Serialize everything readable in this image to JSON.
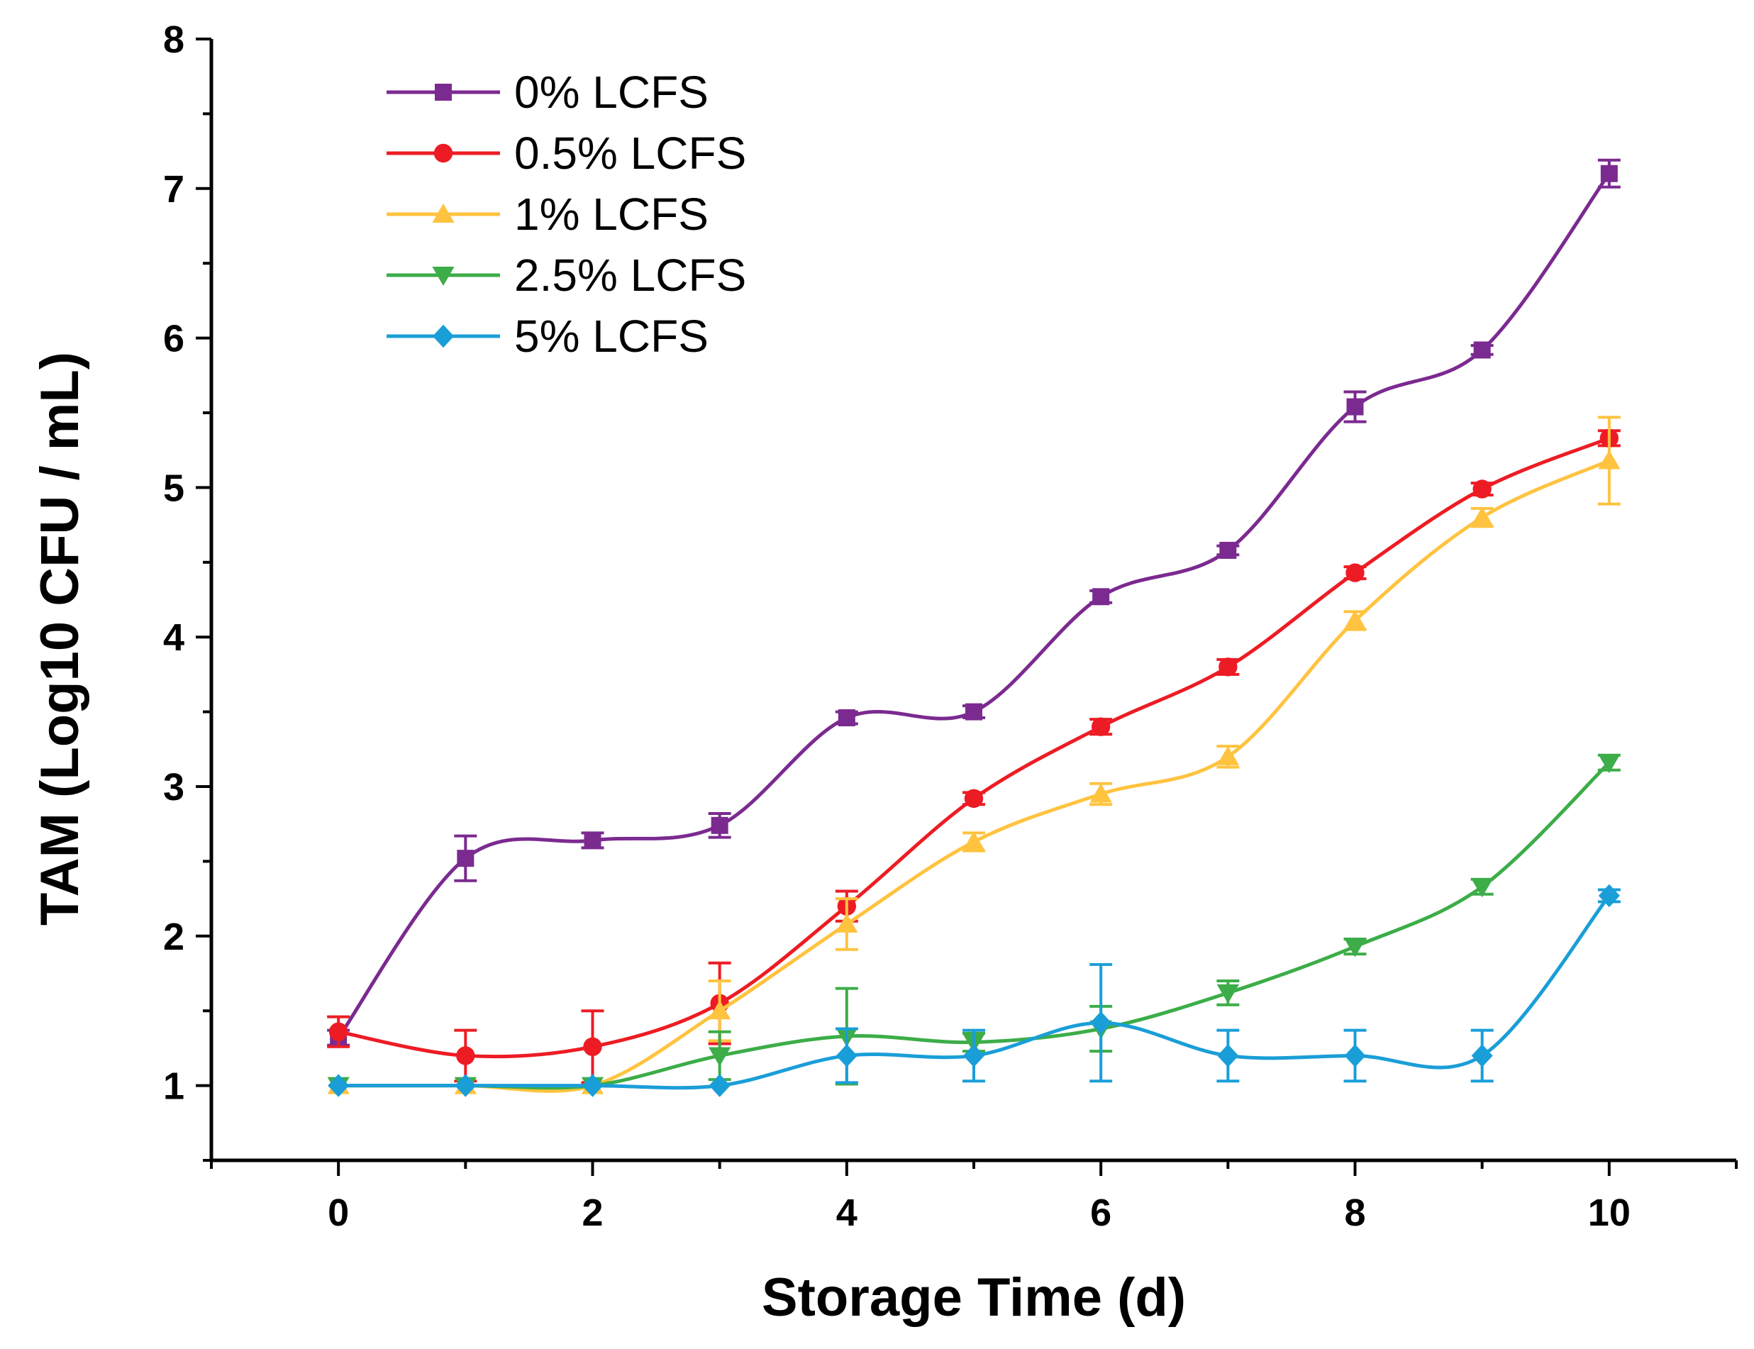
{
  "chart_data": {
    "type": "line",
    "title": "",
    "xlabel": "Storage Time (d)",
    "ylabel": "TAM (Log10 CFU / mL)",
    "xlim": [
      -1,
      11
    ],
    "ylim": [
      0.5,
      8
    ],
    "x_ticks": [
      0,
      2,
      4,
      6,
      8,
      10
    ],
    "y_ticks": [
      1,
      2,
      3,
      4,
      5,
      6,
      7,
      8
    ],
    "legend_position": "top-left",
    "x": [
      0,
      1,
      2,
      3,
      4,
      5,
      6,
      7,
      8,
      9,
      10
    ],
    "series": [
      {
        "name": "0% LCFS",
        "color": "#7b2a90",
        "marker": "square",
        "values": [
          1.32,
          2.52,
          2.64,
          2.74,
          3.46,
          3.5,
          4.27,
          4.58,
          5.54,
          5.92,
          7.1
        ],
        "errors": [
          0.05,
          0.15,
          0.05,
          0.08,
          0.04,
          0.04,
          0.04,
          0.03,
          0.1,
          0.03,
          0.09
        ]
      },
      {
        "name": "0.5% LCFS",
        "color": "#ed1c24",
        "marker": "circle",
        "values": [
          1.36,
          1.2,
          1.26,
          1.55,
          2.2,
          2.92,
          3.4,
          3.8,
          4.43,
          4.99,
          5.33
        ],
        "errors": [
          0.1,
          0.17,
          0.24,
          0.27,
          0.1,
          0.04,
          0.05,
          0.05,
          0.04,
          0.04,
          0.05
        ]
      },
      {
        "name": "1% LCFS",
        "color": "#ffc33f",
        "marker": "triangle-up",
        "values": [
          1.0,
          1.0,
          1.0,
          1.5,
          2.08,
          2.63,
          2.95,
          3.2,
          4.11,
          4.8,
          5.18
        ],
        "errors": [
          0.02,
          0.02,
          0.02,
          0.2,
          0.17,
          0.06,
          0.07,
          0.07,
          0.06,
          0.06,
          0.29
        ]
      },
      {
        "name": "2.5% LCFS",
        "color": "#3cad48",
        "marker": "triangle-down",
        "values": [
          1.0,
          1.0,
          1.0,
          1.2,
          1.33,
          1.29,
          1.38,
          1.62,
          1.93,
          2.33,
          3.16
        ],
        "errors": [
          0.02,
          0.02,
          0.02,
          0.16,
          0.32,
          0.06,
          0.15,
          0.08,
          0.05,
          0.05,
          0.05
        ]
      },
      {
        "name": "5% LCFS",
        "color": "#1a9ed8",
        "marker": "diamond",
        "values": [
          1.0,
          1.0,
          1.0,
          1.0,
          1.2,
          1.2,
          1.42,
          1.2,
          1.2,
          1.2,
          2.27
        ],
        "errors": [
          0.02,
          0.02,
          0.02,
          0.02,
          0.18,
          0.17,
          0.39,
          0.17,
          0.17,
          0.17,
          0.04
        ]
      }
    ]
  }
}
